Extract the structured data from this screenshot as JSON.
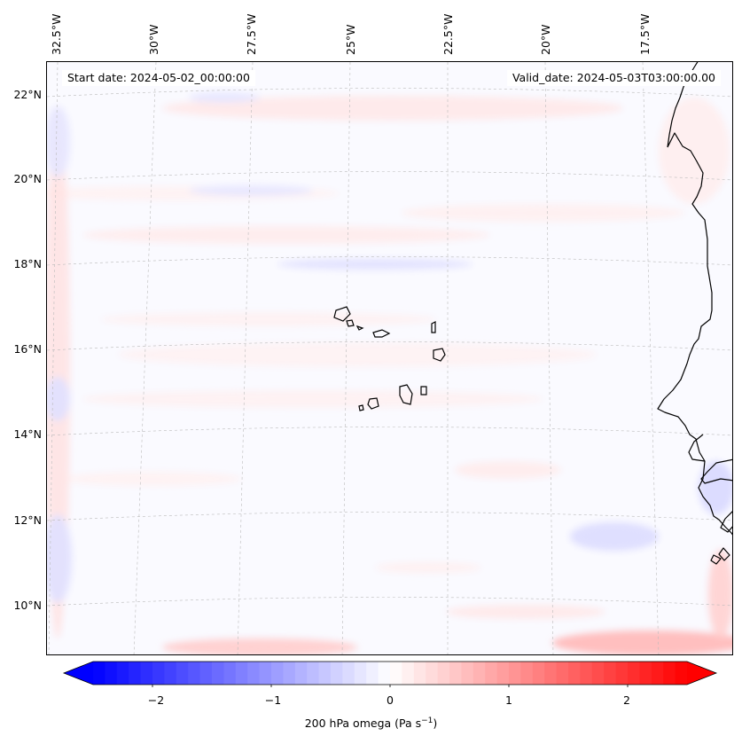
{
  "map": {
    "start_date": "Start date: 2024-05-02_00:00:00",
    "valid_date": "Valid_date: 2024-05-03T03:00:00.00",
    "lat_labels": [
      "22°N",
      "20°N",
      "18°N",
      "16°N",
      "14°N",
      "12°N",
      "10°N"
    ],
    "lon_labels": [
      "32.5°W",
      "30°W",
      "27.5°W",
      "25°W",
      "22.5°W",
      "20°W",
      "17.5°W"
    ],
    "colors": {
      "negative": "#0000ff",
      "positive": "#ff0000",
      "coastline": "#000000",
      "gridline": "#bbbbbb"
    }
  },
  "colorbar": {
    "tick_values": [
      -2,
      -1,
      0,
      1,
      2
    ],
    "tick_labels": [
      "−2",
      "−1",
      "0",
      "1",
      "2"
    ],
    "range": [
      -2.5,
      2.5
    ],
    "label_text": "200 hPa omega (Pa s",
    "label_exponent": "−1",
    "label_close": ")"
  }
}
